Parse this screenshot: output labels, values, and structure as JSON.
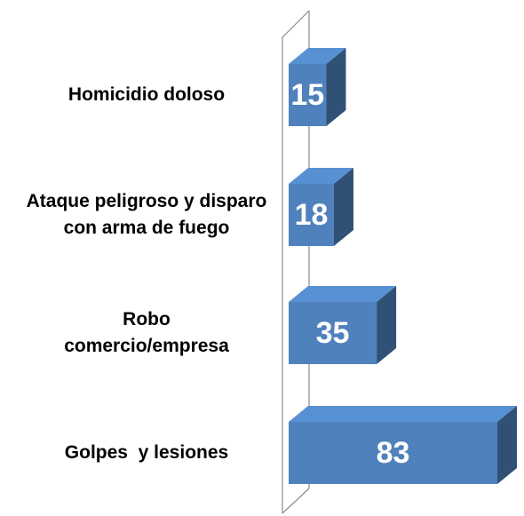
{
  "chart_data": {
    "type": "bar3d_horizontal",
    "categories": [
      "Homicidio doloso",
      "Ataque peligroso y disparo con arma de fuego",
      "Robo comercio/empresa",
      "Golpes  y lesiones"
    ],
    "values": [
      15,
      18,
      35,
      83
    ],
    "color": "#4f81bd"
  }
}
